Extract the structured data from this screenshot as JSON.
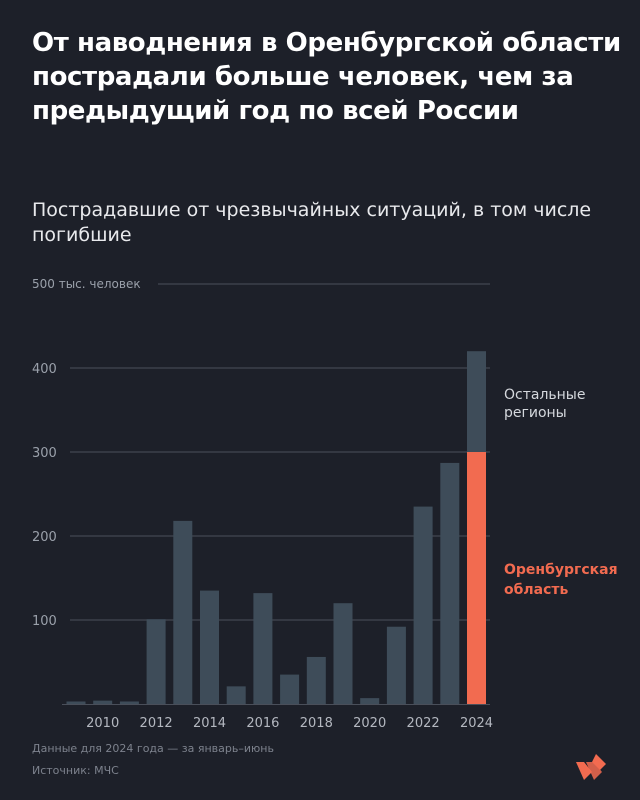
{
  "title": "От наводнения в Оренбургской области пострадали больше человек, чем за предыдущий год по всей России",
  "subtitle": "Пострадавшие от чрезвычайных ситуаций, в том числе погибшие",
  "colors": {
    "background": "#1d2029",
    "bars": "#3e4c59",
    "highlight": "#f26b50",
    "gridline": "#4a4f5a",
    "axis_text": "#9aa0aa"
  },
  "chart_data": {
    "type": "bar",
    "stacked": true,
    "unit_label": "500 тыс. человек",
    "ylim": [
      0,
      500
    ],
    "yticks": [
      100,
      200,
      300,
      400
    ],
    "categories": [
      "2009",
      "2010",
      "2011",
      "2012",
      "2013",
      "2014",
      "2015",
      "2016",
      "2017",
      "2018",
      "2019",
      "2020",
      "2021",
      "2022",
      "2023",
      "2024"
    ],
    "xtick_labels": [
      "2010",
      "2012",
      "2014",
      "2016",
      "2018",
      "2020",
      "2022",
      "2024"
    ],
    "series": [
      {
        "name": "Оренбургская область",
        "values": [
          0,
          0,
          0,
          0,
          0,
          0,
          0,
          0,
          0,
          0,
          0,
          0,
          0,
          0,
          0,
          300
        ]
      },
      {
        "name": "Остальные регионы",
        "values": [
          3,
          4,
          3,
          101,
          218,
          135,
          21,
          132,
          35,
          56,
          120,
          7,
          92,
          235,
          287,
          120
        ]
      }
    ],
    "annotations": [
      {
        "text": "Остальные регионы",
        "series": "Остальные регионы"
      },
      {
        "text": "Оренбургская область",
        "series": "Оренбургская область"
      }
    ]
  },
  "footnotes": {
    "note": "Данные для 2024 года — за январь–июнь",
    "source": "Источник: МЧС"
  }
}
